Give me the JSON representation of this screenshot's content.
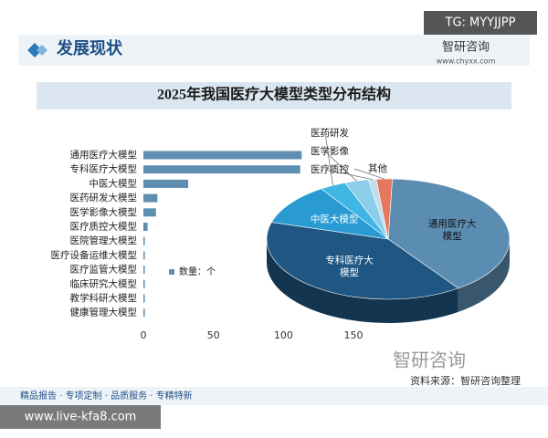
{
  "header": {
    "section": "发展现状",
    "brand": "智研咨询",
    "site": "www.chyxx.com"
  },
  "watermarks": {
    "top": "TG: MYYJJPP",
    "bottom": "www.live-kfa8.com"
  },
  "footer": {
    "source": "资料来源：智研咨询整理",
    "slogan": "精品报告 · 专项定制 · 品质服务 · 专精特新",
    "brand": "智研咨询"
  },
  "chart_data": [
    {
      "type": "hbar",
      "title": "2025年我国医疗大模型类型分布结构",
      "categories": [
        "通用医疗大模型",
        "专科医疗大模型",
        "中医大模型",
        "医药研发大模型",
        "医学影像大模型",
        "医疗质控大模型",
        "医院管理大模型",
        "医疗设备运维大模型",
        "医疗监管大模型",
        "临床研究大模型",
        "教学科研大模型",
        "健康管理大模型"
      ],
      "series": [
        {
          "name": "数量：个",
          "color": "#5f8fb0",
          "values": [
            113,
            112,
            32,
            10,
            9,
            3,
            1,
            1,
            1,
            1,
            1,
            1
          ]
        }
      ],
      "xlim": [
        0,
        150
      ],
      "xticks": [
        0,
        50,
        100,
        150
      ]
    },
    {
      "type": "pie3d",
      "categories": [
        "通用医疗大模型",
        "专科医疗大模型",
        "中医大模型",
        "医药研发",
        "医学影像",
        "医疗质控",
        "其他"
      ],
      "values": [
        113,
        112,
        32,
        10,
        9,
        3,
        6
      ],
      "colors": [
        "#5b8db3",
        "#1f5782",
        "#2a9ad3",
        "#3fb6e3",
        "#8dcde9",
        "#c4dde8",
        "#e4775e"
      ]
    }
  ]
}
